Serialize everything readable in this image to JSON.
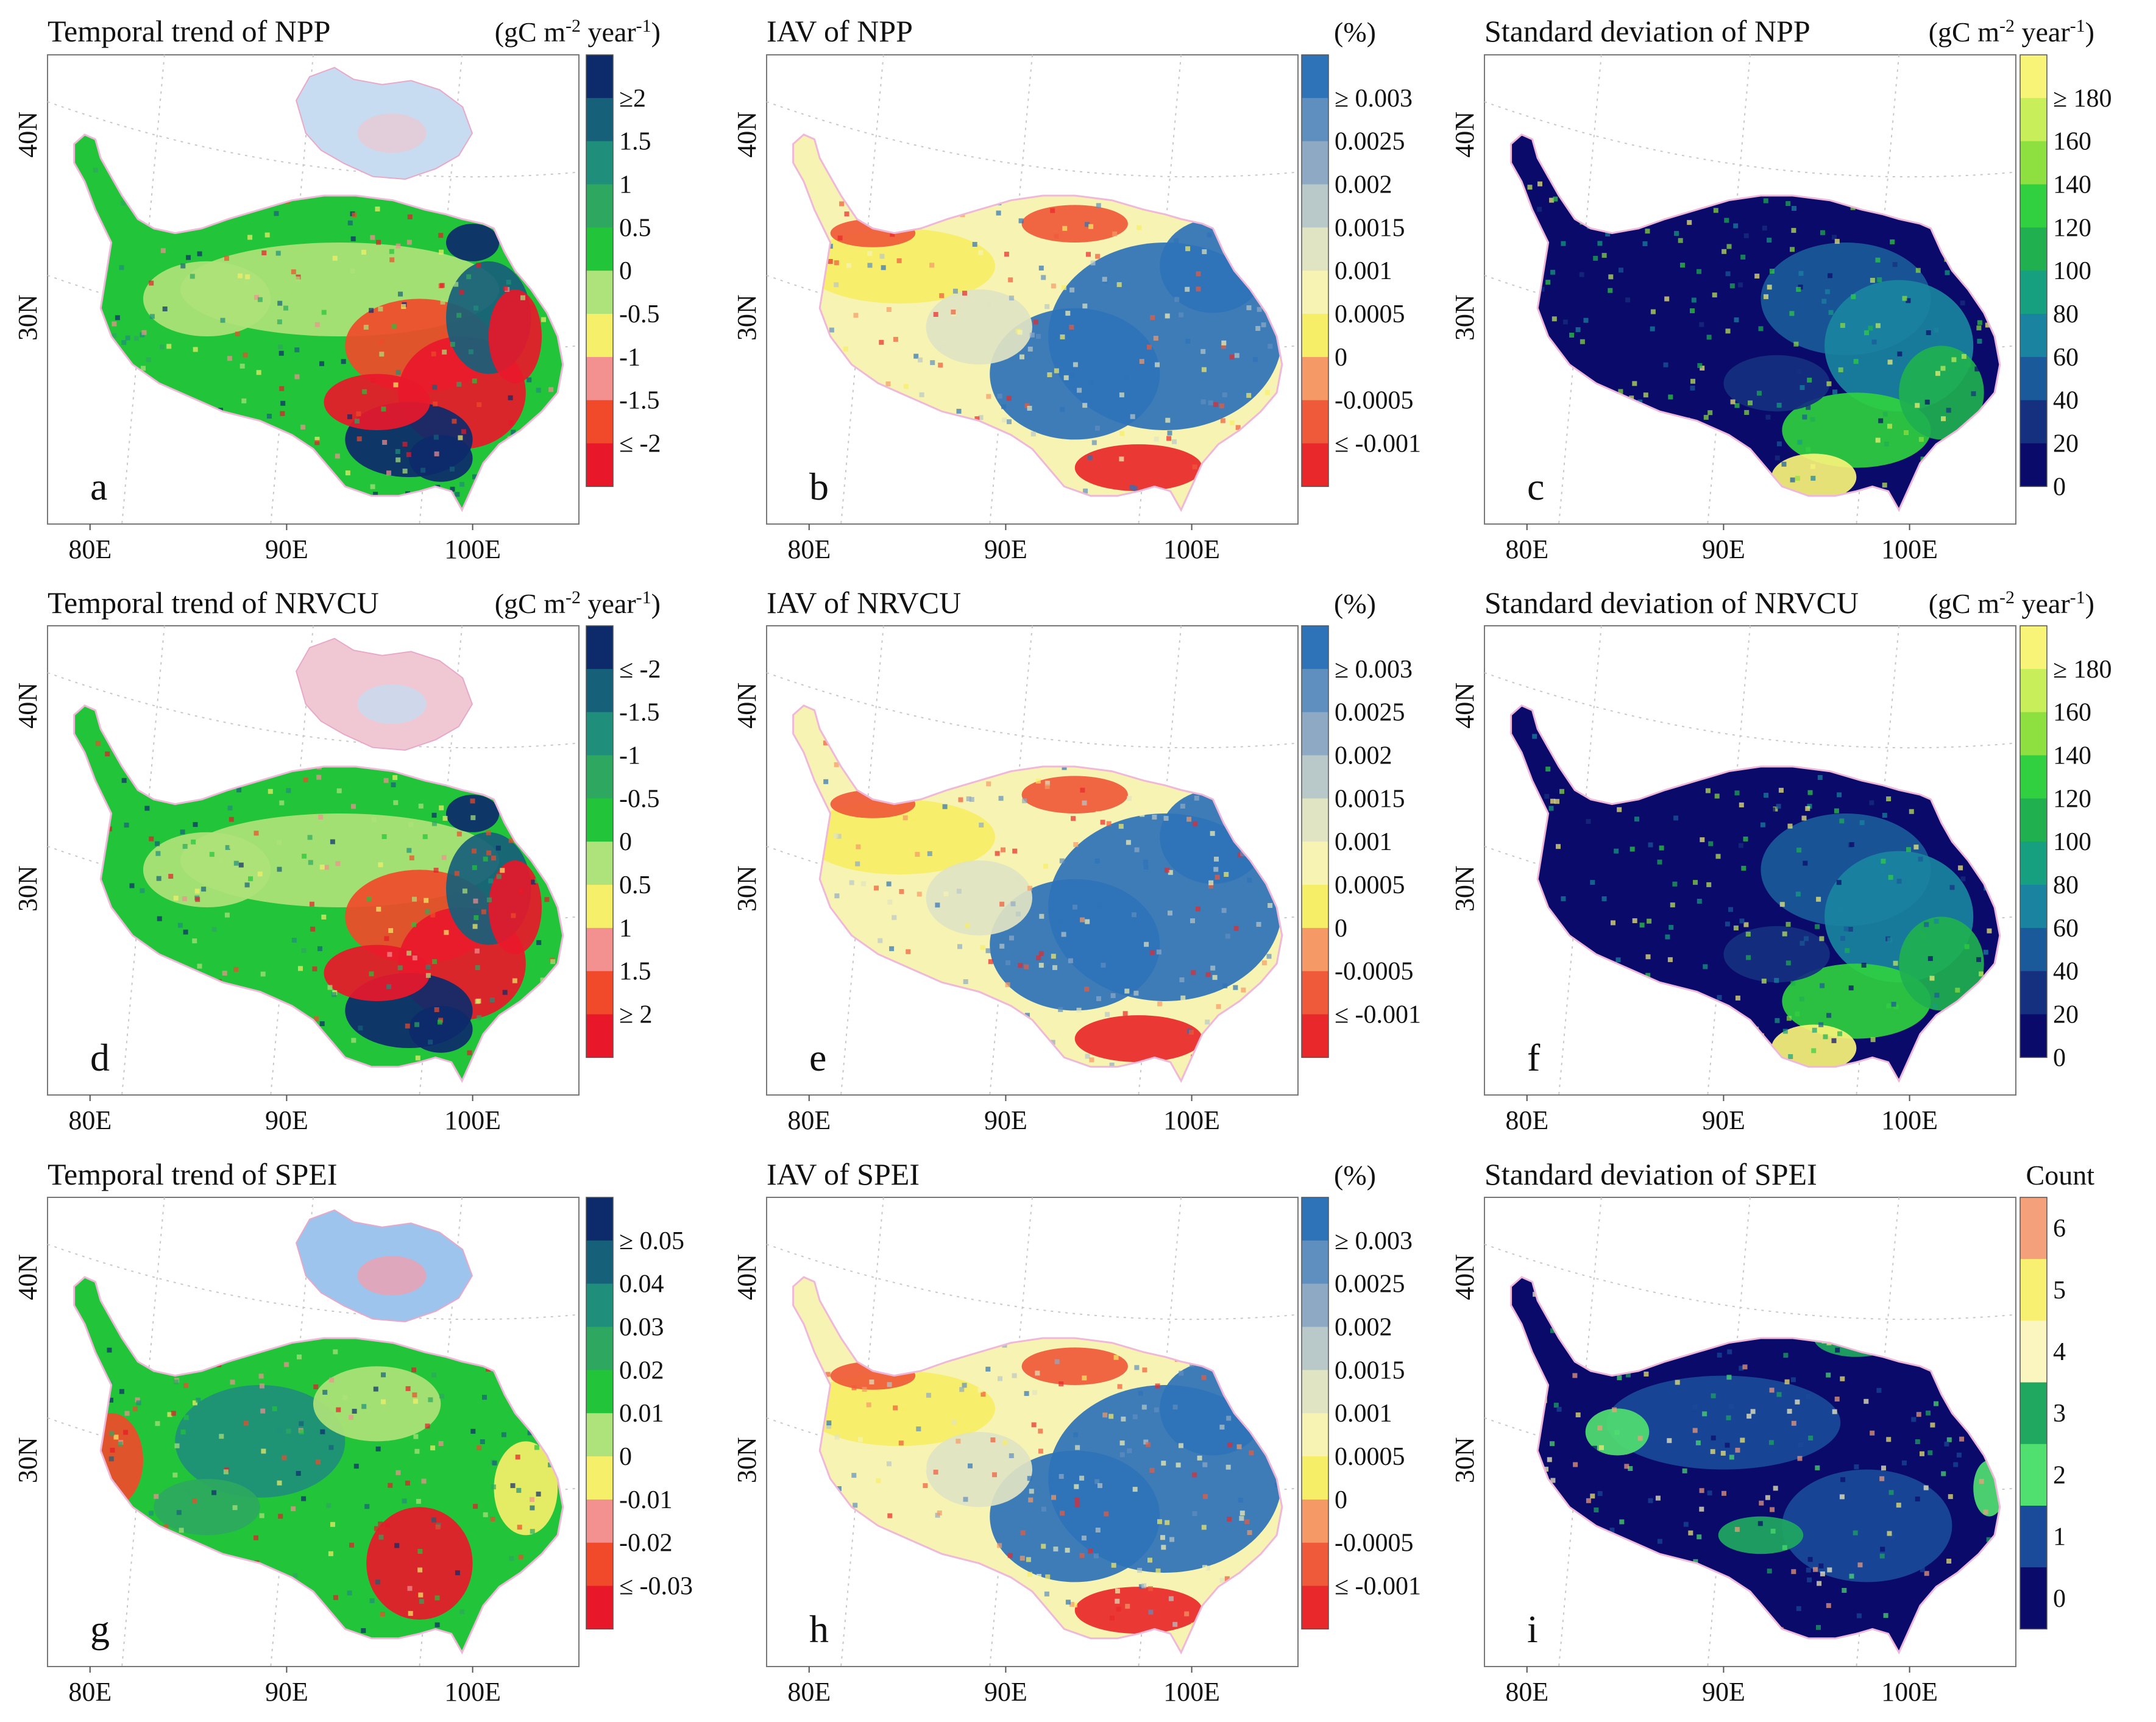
{
  "figure": {
    "panels": [
      {
        "id": "a",
        "letter": "a",
        "title": "Temporal trend of NPP",
        "unit": "(gC m-2 year-1)",
        "palette": "trend",
        "legend": {
          "labels": [
            "≥2",
            "1.5",
            "1",
            "0.5",
            "0",
            "-0.5",
            "-1",
            "-1.5",
            "≤ -2"
          ],
          "colors": [
            "#0d2a6b",
            "#17607a",
            "#1f8f7b",
            "#2ea860",
            "#22c43a",
            "#aee27a",
            "#f5ef6a",
            "#f39090",
            "#f04a2a",
            "#e8182a"
          ]
        },
        "inset": true,
        "inset_colors": [
          "#c7dcf0",
          "#e8c9d6"
        ]
      },
      {
        "id": "b",
        "letter": "b",
        "title": "IAV of NPP",
        "unit": "(%)",
        "palette": "iav",
        "legend": {
          "labels": [
            "≥ 0.003",
            "0.0025",
            "0.002",
            "0.0015",
            "0.001",
            "0.0005",
            "0",
            "-0.0005",
            "≤ -0.001"
          ],
          "colors": [
            "#2e72b8",
            "#5f8fbf",
            "#8ea9c4",
            "#b9c8c8",
            "#e0e4c2",
            "#f7f3b2",
            "#f6ee66",
            "#f59a66",
            "#ef5a3a",
            "#e8282a"
          ]
        },
        "inset": false
      },
      {
        "id": "c",
        "letter": "c",
        "title": "Standard deviation of NPP",
        "unit": "(gC m-2 year-1)",
        "palette": "std",
        "legend": {
          "labels": [
            "≥ 180",
            "160",
            "140",
            "120",
            "100",
            "80",
            "60",
            "40",
            "20",
            "0"
          ],
          "colors": [
            "#f8f478",
            "#c8ee5a",
            "#8ee040",
            "#30d040",
            "#20b050",
            "#16a080",
            "#1a84a0",
            "#1a5a9a",
            "#15307f",
            "#0a0a6a"
          ]
        },
        "inset": false
      },
      {
        "id": "d",
        "letter": "d",
        "title": "Temporal trend of NRVCU",
        "unit": "(gC m-2 year-1)",
        "palette": "trend",
        "legend": {
          "labels": [
            "≤ -2",
            "-1.5",
            "-1",
            "-0.5",
            "0",
            "0.5",
            "1",
            "1.5",
            "≥ 2"
          ],
          "colors": [
            "#0d2a6b",
            "#17607a",
            "#1f8f7b",
            "#2ea860",
            "#22c43a",
            "#aee27a",
            "#f5ef6a",
            "#f39090",
            "#f04a2a",
            "#e8182a"
          ]
        },
        "inset": true,
        "inset_colors": [
          "#f0c8d4",
          "#c7dcf0"
        ]
      },
      {
        "id": "e",
        "letter": "e",
        "title": "IAV of NRVCU",
        "unit": "(%)",
        "palette": "iav",
        "legend": {
          "labels": [
            "≥ 0.003",
            "0.0025",
            "0.002",
            "0.0015",
            "0.001",
            "0.0005",
            "0",
            "-0.0005",
            "≤ -0.001"
          ],
          "colors": [
            "#2e72b8",
            "#5f8fbf",
            "#8ea9c4",
            "#b9c8c8",
            "#e0e4c2",
            "#f7f3b2",
            "#f6ee66",
            "#f59a66",
            "#ef5a3a",
            "#e8282a"
          ]
        },
        "inset": false
      },
      {
        "id": "f",
        "letter": "f",
        "title": "Standard deviation of NRVCU",
        "unit": "(gC m-2 year-1)",
        "palette": "std",
        "legend": {
          "labels": [
            "≥ 180",
            "160",
            "140",
            "120",
            "100",
            "80",
            "60",
            "40",
            "20",
            "0"
          ],
          "colors": [
            "#f8f478",
            "#c8ee5a",
            "#8ee040",
            "#30d040",
            "#20b050",
            "#16a080",
            "#1a84a0",
            "#1a5a9a",
            "#15307f",
            "#0a0a6a"
          ]
        },
        "inset": false
      },
      {
        "id": "g",
        "letter": "g",
        "title": "Temporal trend of SPEI",
        "unit": "",
        "palette": "spei",
        "legend": {
          "labels": [
            "≥ 0.05",
            "0.04",
            "0.03",
            "0.02",
            "0.01",
            "0",
            "-0.01",
            "-0.02",
            "≤ -0.03"
          ],
          "colors": [
            "#0d2a6b",
            "#17607a",
            "#1f8f7b",
            "#2ea860",
            "#22c43a",
            "#aee27a",
            "#f5ef6a",
            "#f39090",
            "#f04a2a",
            "#e8182a"
          ]
        },
        "inset": true,
        "inset_colors": [
          "#9cc4ec",
          "#f0a0b0"
        ]
      },
      {
        "id": "h",
        "letter": "h",
        "title": "IAV of SPEI",
        "unit": "(%)",
        "palette": "iav",
        "legend": {
          "labels": [
            "≥ 0.003",
            "0.0025",
            "0.002",
            "0.0015",
            "0.001",
            "0.0005",
            "0",
            "-0.0005",
            "≤ -0.001"
          ],
          "colors": [
            "#2e72b8",
            "#5f8fbf",
            "#8ea9c4",
            "#b9c8c8",
            "#e0e4c2",
            "#f7f3b2",
            "#f6ee66",
            "#f59a66",
            "#ef5a3a",
            "#e8282a"
          ]
        },
        "inset": false
      },
      {
        "id": "i",
        "letter": "i",
        "title": "Standard deviation of SPEI",
        "unit": "Count",
        "palette": "count",
        "legend": {
          "labels": [
            "6",
            "5",
            "4",
            "3",
            "2",
            "1",
            "0"
          ],
          "colors": [
            "#f4a07a",
            "#f8f070",
            "#fbf6c0",
            "#20a860",
            "#50e070",
            "#1a4a9a",
            "#0a0a6a"
          ]
        },
        "inset": false
      }
    ],
    "axes": {
      "x_ticks": [
        "80E",
        "90E",
        "100E"
      ],
      "y_ticks": [
        "40N",
        "30N"
      ]
    }
  }
}
